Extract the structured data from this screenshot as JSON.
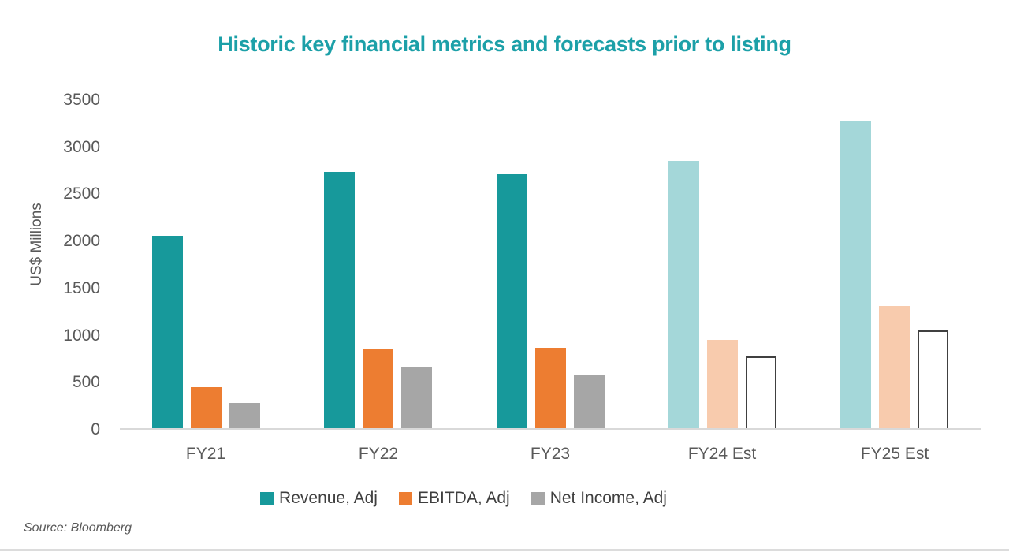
{
  "source_note": "Source: Bloomberg",
  "chart_data": {
    "type": "bar",
    "title": "Historic key financial metrics and forecasts prior to listing",
    "title_color": "#1CA0A8",
    "ylabel": "US$ Millions",
    "xlabel": "",
    "categories": [
      "FY21",
      "FY22",
      "FY23",
      "FY24 Est",
      "FY25 Est"
    ],
    "estimate_start_index": 3,
    "series": [
      {
        "name": "Revenue, Adj",
        "color": "#17999B",
        "estimate_color": "#A4D7D9",
        "values": [
          2045,
          2720,
          2700,
          2840,
          3260
        ]
      },
      {
        "name": "EBITDA, Adj",
        "color": "#ED7D31",
        "estimate_color": "#F8CBAD",
        "values": [
          435,
          840,
          850,
          940,
          1295
        ]
      },
      {
        "name": "Net Income, Adj",
        "color": "#A6A6A6",
        "estimate_color": "#FFFFFF",
        "estimate_border_color": "#404040",
        "values": [
          265,
          650,
          560,
          760,
          1035
        ]
      }
    ],
    "ylim": [
      0,
      3500
    ],
    "ytick_step": 500,
    "grid": false,
    "legend_position": "bottom",
    "axis_line_color": "#D9D9D9",
    "tick_label_color": "#595959",
    "legend_text_color": "#3F3F3F"
  }
}
